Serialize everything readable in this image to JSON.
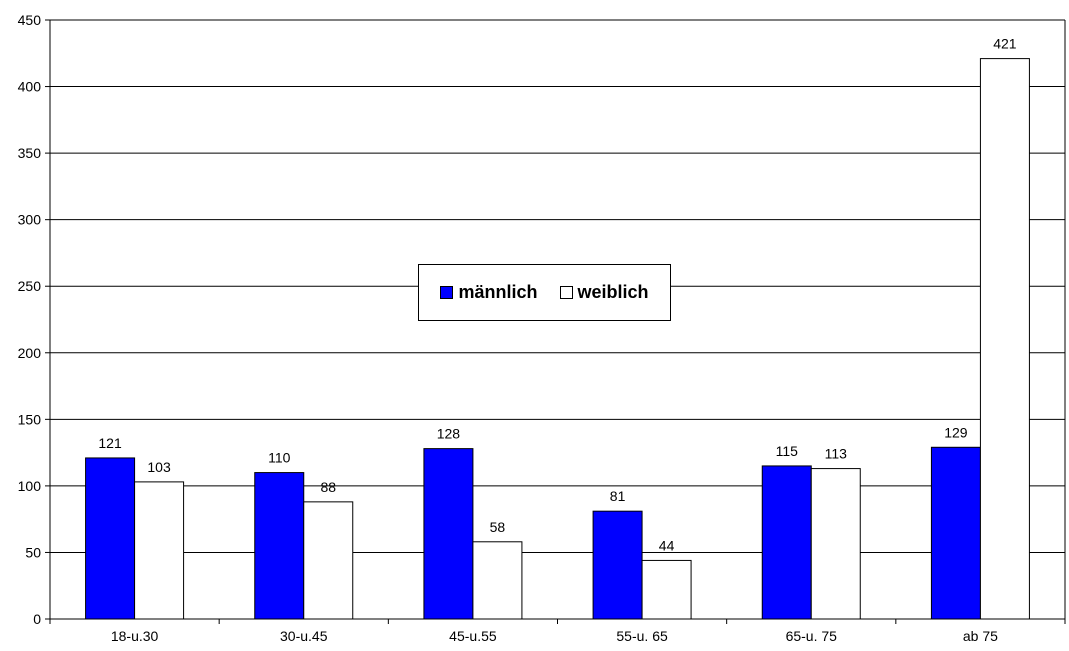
{
  "chart_data": {
    "type": "bar",
    "categories": [
      "18-u.30",
      "30-u.45",
      "45-u.55",
      "55-u. 65",
      "65-u. 75",
      "ab 75"
    ],
    "series": [
      {
        "name": "männlich",
        "values": [
          121,
          110,
          128,
          81,
          115,
          129
        ],
        "color": "#0000ff"
      },
      {
        "name": "weiblich",
        "values": [
          103,
          88,
          58,
          44,
          113,
          421
        ],
        "color": "#ffffff"
      }
    ],
    "title": "",
    "xlabel": "",
    "ylabel": "",
    "ylim": [
      0,
      450
    ],
    "yticks": [
      0,
      50,
      100,
      150,
      200,
      250,
      300,
      350,
      400,
      450
    ],
    "grid": true,
    "legend_position": "center"
  }
}
